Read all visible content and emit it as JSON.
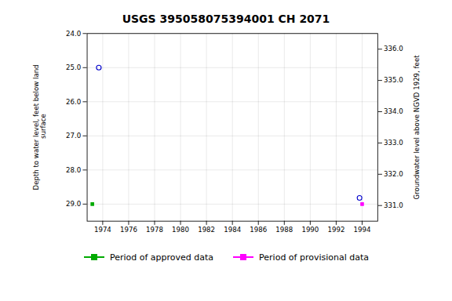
{
  "chart_data": {
    "type": "scatter",
    "title": "USGS 395058075394001 CH  2071",
    "ylabel": "Depth to water level, feet below land\n surface",
    "y2label": "Groundwater level above NGVD 1929, feet",
    "xlim": [
      1972.8,
      1995.2
    ],
    "xticks": [
      1974,
      1976,
      1978,
      1980,
      1982,
      1984,
      1986,
      1988,
      1990,
      1992,
      1994
    ],
    "ylim": [
      29.5,
      24.0
    ],
    "yticks": [
      {
        "value": 24.0,
        "label": "24.0"
      },
      {
        "value": 25.0,
        "label": "25.0"
      },
      {
        "value": 26.0,
        "label": "26.0"
      },
      {
        "value": 27.0,
        "label": "27.0"
      },
      {
        "value": 28.0,
        "label": "28.0"
      },
      {
        "value": 29.0,
        "label": "29.0"
      }
    ],
    "y2lim": [
      330.5,
      336.5
    ],
    "y2ticks": [
      {
        "value": 336.0,
        "label": "336.0"
      },
      {
        "value": 335.0,
        "label": "335.0"
      },
      {
        "value": 334.0,
        "label": "334.0"
      },
      {
        "value": 333.0,
        "label": "333.0"
      },
      {
        "value": 332.0,
        "label": "332.0"
      },
      {
        "value": 331.0,
        "label": "331.0"
      }
    ],
    "grid": true,
    "legend": "bottom",
    "series": [
      {
        "color": "#0000cc",
        "marker": "open_circle",
        "x": [
          1973.7,
          1993.8
        ],
        "values": [
          25.0,
          28.82
        ]
      },
      {
        "name": "Period of approved data",
        "color": "#00aa00",
        "marker": "square",
        "x": [
          1973.2
        ],
        "values": [
          29.0
        ]
      },
      {
        "name": "Period of provisional data",
        "color": "#ff00ff",
        "marker": "square",
        "x": [
          1994.0
        ],
        "values": [
          29.0
        ]
      }
    ]
  }
}
